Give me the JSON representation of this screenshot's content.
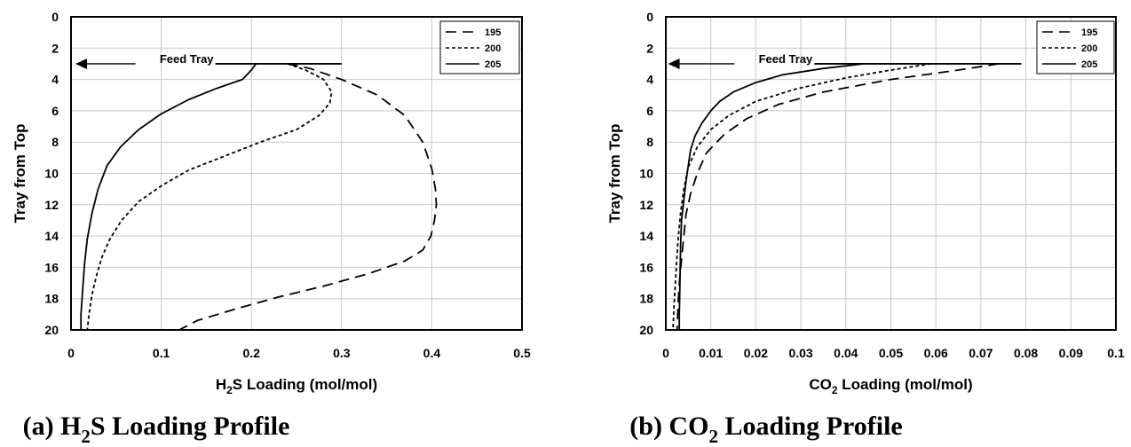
{
  "chart_data": [
    {
      "type": "line",
      "caption": {
        "prefix": "(a) H",
        "sub": "2",
        "suffix": "S Loading Profile"
      },
      "xlabel": {
        "prefix": "H",
        "sub": "2",
        "suffix": "S Loading (mol/mol)"
      },
      "ylabel": "Tray from Top",
      "xlim": [
        0,
        0.5
      ],
      "ylim": [
        0,
        20
      ],
      "y_inverted": true,
      "grid": true,
      "x_ticks": [
        "0",
        "0.1",
        "0.2",
        "0.3",
        "0.4",
        "0.5"
      ],
      "y_ticks": [
        "0",
        "2",
        "4",
        "6",
        "8",
        "10",
        "12",
        "14",
        "16",
        "18",
        "20"
      ],
      "legend_position": "top-right",
      "annotation": {
        "text": "Feed Tray",
        "tray": 3,
        "arrow_x": 0.005,
        "line_x": [
          0.16,
          0.3
        ]
      },
      "series": [
        {
          "name": "195",
          "dash": "12,7",
          "points": [
            [
              0.24,
              3
            ],
            [
              0.265,
              3.3
            ],
            [
              0.3,
              4
            ],
            [
              0.34,
              5
            ],
            [
              0.37,
              6.3
            ],
            [
              0.39,
              8
            ],
            [
              0.4,
              9.7
            ],
            [
              0.404,
              11
            ],
            [
              0.405,
              12
            ],
            [
              0.403,
              13
            ],
            [
              0.399,
              14
            ],
            [
              0.39,
              14.9
            ],
            [
              0.37,
              15.6
            ],
            [
              0.33,
              16.4
            ],
            [
              0.28,
              17.2
            ],
            [
              0.23,
              17.9
            ],
            [
              0.18,
              18.7
            ],
            [
              0.14,
              19.4
            ],
            [
              0.12,
              20
            ]
          ]
        },
        {
          "name": "200",
          "dash": "4,3",
          "points": [
            [
              0.24,
              3
            ],
            [
              0.26,
              3.4
            ],
            [
              0.28,
              4
            ],
            [
              0.289,
              4.8
            ],
            [
              0.287,
              5.5
            ],
            [
              0.275,
              6.3
            ],
            [
              0.25,
              7.2
            ],
            [
              0.21,
              8
            ],
            [
              0.17,
              8.9
            ],
            [
              0.13,
              9.8
            ],
            [
              0.1,
              10.8
            ],
            [
              0.075,
              11.8
            ],
            [
              0.056,
              13
            ],
            [
              0.043,
              14.2
            ],
            [
              0.034,
              15.4
            ],
            [
              0.028,
              16.6
            ],
            [
              0.023,
              17.8
            ],
            [
              0.02,
              19
            ],
            [
              0.018,
              20
            ]
          ]
        },
        {
          "name": "205",
          "dash": "",
          "points": [
            [
              0.205,
              3
            ],
            [
              0.2,
              3.4
            ],
            [
              0.19,
              4
            ],
            [
              0.16,
              4.6
            ],
            [
              0.13,
              5.3
            ],
            [
              0.1,
              6.2
            ],
            [
              0.075,
              7.2
            ],
            [
              0.055,
              8.3
            ],
            [
              0.04,
              9.5
            ],
            [
              0.03,
              11
            ],
            [
              0.023,
              12.6
            ],
            [
              0.018,
              14.2
            ],
            [
              0.015,
              15.8
            ],
            [
              0.013,
              17.4
            ],
            [
              0.011,
              19
            ],
            [
              0.011,
              20
            ]
          ]
        }
      ]
    },
    {
      "type": "line",
      "caption": {
        "prefix": "(b) CO",
        "sub": "2",
        "suffix": " Loading Profile"
      },
      "xlabel": {
        "prefix": "CO",
        "sub": "2",
        "suffix": " Loading (mol/mol)"
      },
      "ylabel": "Tray from Top",
      "xlim": [
        0,
        0.1
      ],
      "ylim": [
        0,
        20
      ],
      "y_inverted": true,
      "grid": true,
      "x_ticks": [
        "0",
        "0.01",
        "0.02",
        "0.03",
        "0.04",
        "0.05",
        "0.06",
        "0.07",
        "0.08",
        "0.09",
        "0.1"
      ],
      "y_ticks": [
        "0",
        "2",
        "4",
        "6",
        "8",
        "10",
        "12",
        "14",
        "16",
        "18",
        "20"
      ],
      "legend_position": "top-right",
      "annotation": {
        "text": "Feed Tray",
        "tray": 3,
        "arrow_x": 0.0005,
        "line_x": [
          0.033,
          0.079
        ]
      },
      "series": [
        {
          "name": "195",
          "dash": "12,7",
          "points": [
            [
              0.074,
              3
            ],
            [
              0.065,
              3.4
            ],
            [
              0.05,
              4
            ],
            [
              0.035,
              4.8
            ],
            [
              0.025,
              5.6
            ],
            [
              0.018,
              6.5
            ],
            [
              0.013,
              7.5
            ],
            [
              0.009,
              8.7
            ],
            [
              0.007,
              10
            ],
            [
              0.0055,
              11.3
            ],
            [
              0.0045,
              12.6
            ],
            [
              0.004,
              14
            ],
            [
              0.0035,
              15.5
            ],
            [
              0.003,
              17
            ],
            [
              0.0027,
              18.5
            ],
            [
              0.0025,
              20
            ]
          ]
        },
        {
          "name": "200",
          "dash": "4,3",
          "points": [
            [
              0.059,
              3
            ],
            [
              0.05,
              3.4
            ],
            [
              0.04,
              3.9
            ],
            [
              0.029,
              4.6
            ],
            [
              0.02,
              5.4
            ],
            [
              0.014,
              6.3
            ],
            [
              0.01,
              7.2
            ],
            [
              0.007,
              8.3
            ],
            [
              0.005,
              9.6
            ],
            [
              0.004,
              11
            ],
            [
              0.0033,
              12.5
            ],
            [
              0.0028,
              14
            ],
            [
              0.0024,
              15.6
            ],
            [
              0.0021,
              17.2
            ],
            [
              0.0018,
              18.6
            ],
            [
              0.0016,
              20
            ]
          ]
        },
        {
          "name": "205",
          "dash": "",
          "points": [
            [
              0.044,
              3
            ],
            [
              0.035,
              3.3
            ],
            [
              0.026,
              3.7
            ],
            [
              0.02,
              4.2
            ],
            [
              0.015,
              4.8
            ],
            [
              0.012,
              5.4
            ],
            [
              0.01,
              6
            ],
            [
              0.008,
              6.8
            ],
            [
              0.0065,
              7.6
            ],
            [
              0.0055,
              8.5
            ],
            [
              0.005,
              9.5
            ],
            [
              0.0045,
              10.5
            ],
            [
              0.004,
              11.7
            ],
            [
              0.0035,
              13
            ],
            [
              0.0033,
              14.5
            ],
            [
              0.0032,
              16
            ],
            [
              0.0031,
              17.6
            ],
            [
              0.003,
              19
            ],
            [
              0.003,
              20
            ]
          ]
        }
      ]
    }
  ]
}
